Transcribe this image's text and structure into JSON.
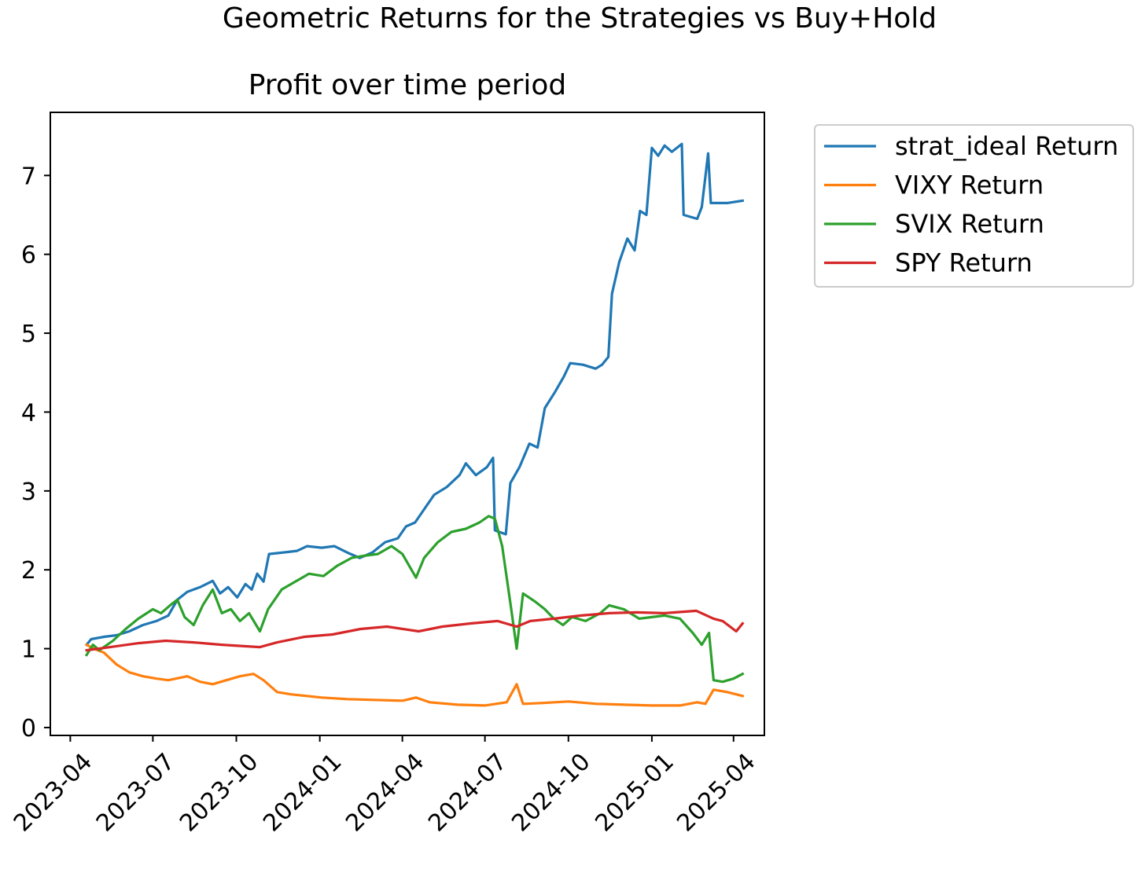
{
  "figure": {
    "suptitle": "Geometric Returns for the Strategies vs Buy+Hold"
  },
  "chart_data": {
    "type": "line",
    "title": "Profit over time period",
    "xlabel": "",
    "ylabel": "",
    "x_axis": {
      "type": "date",
      "range": [
        "2023-03-10",
        "2025-05-05"
      ],
      "ticks": [
        "2023-04",
        "2023-07",
        "2023-10",
        "2024-01",
        "2024-04",
        "2024-07",
        "2024-10",
        "2025-01",
        "2025-04"
      ],
      "tick_dates": [
        "2023-04-01",
        "2023-07-01",
        "2023-10-01",
        "2024-01-01",
        "2024-04-01",
        "2024-07-01",
        "2024-10-01",
        "2025-01-01",
        "2025-04-01"
      ]
    },
    "y_axis": {
      "range": [
        -0.1,
        7.8
      ],
      "ticks": [
        0,
        1,
        2,
        3,
        4,
        5,
        6,
        7
      ]
    },
    "grid": false,
    "legend": {
      "placement": "outside-right-top"
    },
    "series": [
      {
        "name": "strat_ideal Return",
        "color": "#1f77b4",
        "points": [
          [
            "2023-04-19",
            1.05
          ],
          [
            "2023-04-24",
            1.12
          ],
          [
            "2023-05-08",
            1.15
          ],
          [
            "2023-05-22",
            1.17
          ],
          [
            "2023-06-05",
            1.22
          ],
          [
            "2023-06-20",
            1.3
          ],
          [
            "2023-07-05",
            1.35
          ],
          [
            "2023-07-18",
            1.42
          ],
          [
            "2023-07-28",
            1.62
          ],
          [
            "2023-08-08",
            1.72
          ],
          [
            "2023-08-22",
            1.78
          ],
          [
            "2023-09-05",
            1.86
          ],
          [
            "2023-09-13",
            1.7
          ],
          [
            "2023-09-22",
            1.78
          ],
          [
            "2023-10-02",
            1.65
          ],
          [
            "2023-10-11",
            1.82
          ],
          [
            "2023-10-18",
            1.75
          ],
          [
            "2023-10-24",
            1.95
          ],
          [
            "2023-10-31",
            1.85
          ],
          [
            "2023-11-06",
            2.2
          ],
          [
            "2023-11-22",
            2.22
          ],
          [
            "2023-12-07",
            2.24
          ],
          [
            "2023-12-18",
            2.3
          ],
          [
            "2024-01-03",
            2.28
          ],
          [
            "2024-01-17",
            2.3
          ],
          [
            "2024-01-31",
            2.22
          ],
          [
            "2024-02-14",
            2.15
          ],
          [
            "2024-02-28",
            2.22
          ],
          [
            "2024-03-13",
            2.35
          ],
          [
            "2024-03-27",
            2.4
          ],
          [
            "2024-04-05",
            2.55
          ],
          [
            "2024-04-15",
            2.6
          ],
          [
            "2024-04-24",
            2.75
          ],
          [
            "2024-05-06",
            2.95
          ],
          [
            "2024-05-20",
            3.05
          ],
          [
            "2024-06-03",
            3.2
          ],
          [
            "2024-06-10",
            3.35
          ],
          [
            "2024-06-21",
            3.2
          ],
          [
            "2024-07-03",
            3.3
          ],
          [
            "2024-07-10",
            3.42
          ],
          [
            "2024-07-12",
            2.5
          ],
          [
            "2024-07-24",
            2.45
          ],
          [
            "2024-07-29",
            3.1
          ],
          [
            "2024-08-08",
            3.3
          ],
          [
            "2024-08-19",
            3.6
          ],
          [
            "2024-08-28",
            3.55
          ],
          [
            "2024-09-05",
            4.05
          ],
          [
            "2024-09-16",
            4.25
          ],
          [
            "2024-09-26",
            4.45
          ],
          [
            "2024-10-03",
            4.62
          ],
          [
            "2024-10-17",
            4.6
          ],
          [
            "2024-10-31",
            4.55
          ],
          [
            "2024-11-07",
            4.6
          ],
          [
            "2024-11-14",
            4.7
          ],
          [
            "2024-11-18",
            5.5
          ],
          [
            "2024-11-26",
            5.9
          ],
          [
            "2024-12-05",
            6.2
          ],
          [
            "2024-12-13",
            6.05
          ],
          [
            "2024-12-19",
            6.55
          ],
          [
            "2024-12-26",
            6.5
          ],
          [
            "2025-01-01",
            7.35
          ],
          [
            "2025-01-08",
            7.25
          ],
          [
            "2025-01-15",
            7.38
          ],
          [
            "2025-01-23",
            7.3
          ],
          [
            "2025-02-03",
            7.4
          ],
          [
            "2025-02-05",
            6.5
          ],
          [
            "2025-02-20",
            6.45
          ],
          [
            "2025-02-25",
            6.6
          ],
          [
            "2025-03-04",
            7.28
          ],
          [
            "2025-03-07",
            6.65
          ],
          [
            "2025-03-25",
            6.65
          ],
          [
            "2025-04-11",
            6.68
          ]
        ]
      },
      {
        "name": "VIXY Return",
        "color": "#ff7f0e",
        "points": [
          [
            "2023-04-19",
            1.05
          ],
          [
            "2023-04-27",
            1.0
          ],
          [
            "2023-05-08",
            0.95
          ],
          [
            "2023-05-22",
            0.8
          ],
          [
            "2023-06-05",
            0.7
          ],
          [
            "2023-06-20",
            0.65
          ],
          [
            "2023-07-05",
            0.62
          ],
          [
            "2023-07-18",
            0.6
          ],
          [
            "2023-08-08",
            0.65
          ],
          [
            "2023-08-22",
            0.58
          ],
          [
            "2023-09-05",
            0.55
          ],
          [
            "2023-09-20",
            0.6
          ],
          [
            "2023-10-05",
            0.65
          ],
          [
            "2023-10-20",
            0.68
          ],
          [
            "2023-10-31",
            0.6
          ],
          [
            "2023-11-15",
            0.45
          ],
          [
            "2023-12-01",
            0.42
          ],
          [
            "2023-12-18",
            0.4
          ],
          [
            "2024-01-03",
            0.38
          ],
          [
            "2024-02-01",
            0.36
          ],
          [
            "2024-03-01",
            0.35
          ],
          [
            "2024-04-01",
            0.34
          ],
          [
            "2024-04-16",
            0.38
          ],
          [
            "2024-05-01",
            0.32
          ],
          [
            "2024-06-01",
            0.29
          ],
          [
            "2024-07-01",
            0.28
          ],
          [
            "2024-07-25",
            0.32
          ],
          [
            "2024-08-05",
            0.55
          ],
          [
            "2024-08-12",
            0.3
          ],
          [
            "2024-09-01",
            0.31
          ],
          [
            "2024-10-01",
            0.33
          ],
          [
            "2024-11-01",
            0.3
          ],
          [
            "2024-12-01",
            0.29
          ],
          [
            "2025-01-01",
            0.28
          ],
          [
            "2025-02-01",
            0.28
          ],
          [
            "2025-02-20",
            0.32
          ],
          [
            "2025-03-01",
            0.3
          ],
          [
            "2025-03-10",
            0.48
          ],
          [
            "2025-03-25",
            0.45
          ],
          [
            "2025-04-11",
            0.4
          ]
        ]
      },
      {
        "name": "SVIX Return",
        "color": "#2ca02c",
        "points": [
          [
            "2023-04-19",
            0.92
          ],
          [
            "2023-04-26",
            1.05
          ],
          [
            "2023-05-03",
            0.98
          ],
          [
            "2023-05-18",
            1.1
          ],
          [
            "2023-06-01",
            1.25
          ],
          [
            "2023-06-15",
            1.38
          ],
          [
            "2023-07-01",
            1.5
          ],
          [
            "2023-07-10",
            1.45
          ],
          [
            "2023-07-20",
            1.55
          ],
          [
            "2023-07-28",
            1.62
          ],
          [
            "2023-08-05",
            1.4
          ],
          [
            "2023-08-15",
            1.3
          ],
          [
            "2023-08-25",
            1.55
          ],
          [
            "2023-09-05",
            1.75
          ],
          [
            "2023-09-15",
            1.45
          ],
          [
            "2023-09-25",
            1.5
          ],
          [
            "2023-10-05",
            1.35
          ],
          [
            "2023-10-15",
            1.45
          ],
          [
            "2023-10-27",
            1.22
          ],
          [
            "2023-11-05",
            1.5
          ],
          [
            "2023-11-20",
            1.75
          ],
          [
            "2023-12-05",
            1.85
          ],
          [
            "2023-12-20",
            1.95
          ],
          [
            "2024-01-05",
            1.92
          ],
          [
            "2024-01-20",
            2.05
          ],
          [
            "2024-02-05",
            2.15
          ],
          [
            "2024-02-20",
            2.18
          ],
          [
            "2024-03-05",
            2.2
          ],
          [
            "2024-03-20",
            2.3
          ],
          [
            "2024-04-01",
            2.2
          ],
          [
            "2024-04-16",
            1.9
          ],
          [
            "2024-04-25",
            2.15
          ],
          [
            "2024-05-10",
            2.35
          ],
          [
            "2024-05-25",
            2.48
          ],
          [
            "2024-06-10",
            2.52
          ],
          [
            "2024-06-25",
            2.6
          ],
          [
            "2024-07-05",
            2.68
          ],
          [
            "2024-07-12",
            2.65
          ],
          [
            "2024-07-20",
            2.3
          ],
          [
            "2024-07-30",
            1.5
          ],
          [
            "2024-08-05",
            1.0
          ],
          [
            "2024-08-12",
            1.7
          ],
          [
            "2024-08-25",
            1.6
          ],
          [
            "2024-09-05",
            1.5
          ],
          [
            "2024-09-15",
            1.38
          ],
          [
            "2024-09-25",
            1.3
          ],
          [
            "2024-10-05",
            1.4
          ],
          [
            "2024-10-20",
            1.35
          ],
          [
            "2024-11-05",
            1.45
          ],
          [
            "2024-11-15",
            1.55
          ],
          [
            "2024-12-01",
            1.5
          ],
          [
            "2024-12-18",
            1.38
          ],
          [
            "2025-01-01",
            1.4
          ],
          [
            "2025-01-15",
            1.42
          ],
          [
            "2025-02-01",
            1.38
          ],
          [
            "2025-02-15",
            1.2
          ],
          [
            "2025-02-25",
            1.05
          ],
          [
            "2025-03-05",
            1.2
          ],
          [
            "2025-03-10",
            0.6
          ],
          [
            "2025-03-20",
            0.58
          ],
          [
            "2025-04-01",
            0.62
          ],
          [
            "2025-04-11",
            0.68
          ]
        ]
      },
      {
        "name": "SPY Return",
        "color": "#d62728",
        "points": [
          [
            "2023-04-19",
            0.98
          ],
          [
            "2023-05-15",
            1.02
          ],
          [
            "2023-06-15",
            1.07
          ],
          [
            "2023-07-15",
            1.1
          ],
          [
            "2023-08-15",
            1.08
          ],
          [
            "2023-09-15",
            1.05
          ],
          [
            "2023-10-27",
            1.02
          ],
          [
            "2023-11-15",
            1.08
          ],
          [
            "2023-12-15",
            1.15
          ],
          [
            "2024-01-15",
            1.18
          ],
          [
            "2024-02-15",
            1.25
          ],
          [
            "2024-03-15",
            1.28
          ],
          [
            "2024-04-19",
            1.22
          ],
          [
            "2024-05-15",
            1.28
          ],
          [
            "2024-06-15",
            1.32
          ],
          [
            "2024-07-15",
            1.35
          ],
          [
            "2024-08-05",
            1.28
          ],
          [
            "2024-08-20",
            1.35
          ],
          [
            "2024-09-15",
            1.38
          ],
          [
            "2024-10-15",
            1.42
          ],
          [
            "2024-11-15",
            1.45
          ],
          [
            "2024-12-15",
            1.46
          ],
          [
            "2025-01-15",
            1.45
          ],
          [
            "2025-02-19",
            1.48
          ],
          [
            "2025-03-10",
            1.38
          ],
          [
            "2025-03-20",
            1.35
          ],
          [
            "2025-04-04",
            1.22
          ],
          [
            "2025-04-11",
            1.32
          ]
        ]
      }
    ]
  }
}
